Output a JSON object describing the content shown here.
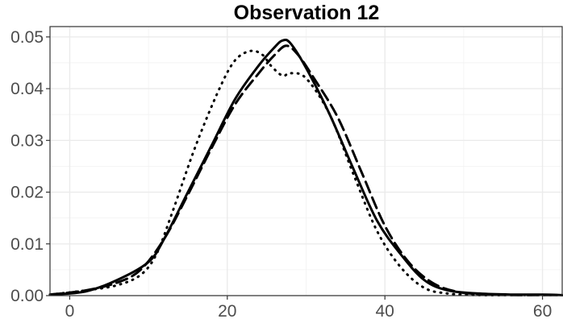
{
  "chart_data": {
    "type": "line",
    "title": "Observation 12",
    "xlabel": "",
    "ylabel": "",
    "xlim": [
      -2.5,
      62.5
    ],
    "ylim": [
      0,
      0.052
    ],
    "x_ticks": [
      0,
      20,
      40,
      60
    ],
    "x_tick_labels": [
      "0",
      "20",
      "40",
      "60"
    ],
    "y_ticks": [
      0,
      0.01,
      0.02,
      0.03,
      0.04,
      0.05
    ],
    "y_tick_labels": [
      "0.00",
      "0.01",
      "0.02",
      "0.03",
      "0.04",
      "0.05"
    ],
    "grid": true,
    "legend": "none",
    "series": [
      {
        "style": "solid",
        "color": "#000000",
        "x": [
          -2.5,
          2,
          6,
          10,
          12,
          15,
          18,
          21,
          24,
          26,
          27,
          28,
          30,
          33,
          36,
          39,
          42,
          45,
          48,
          52,
          56,
          60,
          62.5
        ],
        "y": [
          0.0002,
          0.0008,
          0.003,
          0.0065,
          0.011,
          0.02,
          0.029,
          0.038,
          0.0445,
          0.048,
          0.0493,
          0.0488,
          0.044,
          0.035,
          0.0245,
          0.0145,
          0.008,
          0.003,
          0.001,
          0.0004,
          0.0002,
          0.0002,
          0.0001
        ]
      },
      {
        "style": "dashed",
        "color": "#000000",
        "x": [
          -2.5,
          2,
          6,
          9,
          12,
          15,
          18,
          21,
          24,
          26,
          27.5,
          29,
          31,
          34,
          37,
          40,
          43,
          46,
          49,
          52,
          56,
          60,
          62.5
        ],
        "y": [
          0.0002,
          0.001,
          0.0025,
          0.005,
          0.011,
          0.0195,
          0.0285,
          0.037,
          0.043,
          0.0465,
          0.0483,
          0.0465,
          0.042,
          0.0345,
          0.024,
          0.0135,
          0.0065,
          0.0025,
          0.0008,
          0.0003,
          0.0001,
          0.0001,
          0.0001
        ]
      },
      {
        "style": "dotted",
        "color": "#000000",
        "x": [
          -2.5,
          2,
          6,
          9,
          11,
          13,
          16,
          19,
          21,
          23,
          24.5,
          25.5,
          27,
          28,
          30,
          33,
          36,
          39,
          42,
          45,
          48,
          52,
          56,
          60,
          62.5
        ],
        "y": [
          0.0002,
          0.001,
          0.002,
          0.004,
          0.008,
          0.016,
          0.029,
          0.04,
          0.0455,
          0.0473,
          0.0465,
          0.0445,
          0.0425,
          0.043,
          0.042,
          0.035,
          0.0235,
          0.0125,
          0.0055,
          0.0015,
          0.0004,
          0.0001,
          0.0001,
          0.0001,
          0.0001
        ]
      }
    ]
  }
}
